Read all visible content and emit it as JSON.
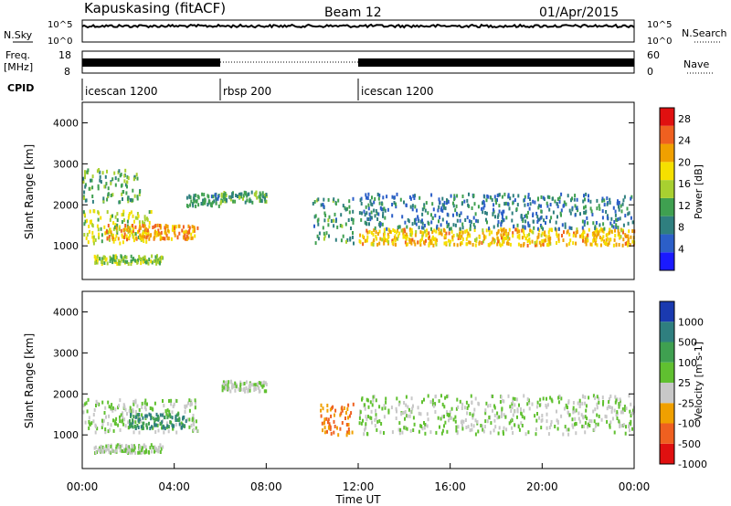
{
  "header": {
    "station": "Kapuskasing (fitACF)",
    "beam": "Beam 12",
    "date": "01/Apr/2015"
  },
  "chart_data": [
    {
      "type": "line",
      "panel": "noise",
      "left_label": "N.Sky",
      "right_label": "N.Search",
      "y_ticks_left": [
        "10^5",
        "10^0"
      ],
      "y_ticks_right": [
        "10^5",
        "10^0"
      ],
      "note": "N.Sky solid trace near the top of the panel throughout the day"
    },
    {
      "type": "line",
      "panel": "frequency",
      "left_label": [
        "Freq.",
        "[MHz]"
      ],
      "right_label": "Nave",
      "y_ticks_left": [
        "18",
        "8"
      ],
      "y_ticks_right": [
        "60",
        "0"
      ],
      "freq_segments": [
        {
          "start_h": 0,
          "end_h": 6.0,
          "style": "solid"
        },
        {
          "start_h": 6.0,
          "end_h": 12.0,
          "style": "dotted"
        },
        {
          "start_h": 12.0,
          "end_h": 24.0,
          "style": "solid"
        }
      ]
    },
    {
      "type": "table",
      "panel": "cpid",
      "label": "CPID",
      "segments": [
        {
          "start_h": 0,
          "label": "icescan 1200"
        },
        {
          "start_h": 6.0,
          "label": "rbsp 200"
        },
        {
          "start_h": 12.0,
          "label": "icescan 1200"
        }
      ]
    },
    {
      "type": "heatmap",
      "panel": "power",
      "ylabel": "Slant Range [km]",
      "ylim": [
        180,
        4500
      ],
      "y_ticks": [
        1000,
        2000,
        3000,
        4000
      ],
      "colorbar": {
        "label": "Power [dB]",
        "ticks": [
          4,
          8,
          12,
          16,
          20,
          24,
          28
        ],
        "range": [
          0,
          30
        ],
        "colors": [
          "#1a1aff",
          "#2c5fc8",
          "#2f7f7f",
          "#3fa050",
          "#a8d030",
          "#f5e000",
          "#f0a000",
          "#ef6020",
          "#e01010"
        ]
      },
      "regions": [
        {
          "t0": 0.0,
          "t1": 3.0,
          "r0": 1100,
          "r1": 1900,
          "level": 16
        },
        {
          "t0": 1.0,
          "t1": 5.0,
          "r0": 1200,
          "r1": 1550,
          "level": 22
        },
        {
          "t0": 0.0,
          "t1": 2.5,
          "r0": 2100,
          "r1": 2900,
          "level": 12
        },
        {
          "t0": 0.5,
          "t1": 3.5,
          "r0": 600,
          "r1": 800,
          "level": 14
        },
        {
          "t0": 4.5,
          "t1": 6.0,
          "r0": 2000,
          "r1": 2300,
          "level": 10
        },
        {
          "t0": 6.0,
          "t1": 8.0,
          "r0": 2100,
          "r1": 2350,
          "level": 12
        },
        {
          "t0": 10.0,
          "t1": 11.8,
          "r0": 1100,
          "r1": 2200,
          "level": 10
        },
        {
          "t0": 12.0,
          "t1": 24.0,
          "r0": 1050,
          "r1": 1450,
          "level": 20
        },
        {
          "t0": 12.0,
          "t1": 24.0,
          "r0": 1450,
          "r1": 2300,
          "level": 8
        }
      ]
    },
    {
      "type": "heatmap",
      "panel": "velocity",
      "ylabel": "Slant Range [km]",
      "xlabel": "Time UT",
      "xlim": [
        0,
        24
      ],
      "ylim": [
        180,
        4500
      ],
      "x_ticks": [
        "00:00",
        "04:00",
        "08:00",
        "12:00",
        "16:00",
        "20:00",
        "00:00"
      ],
      "y_ticks": [
        1000,
        2000,
        3000,
        4000
      ],
      "colorbar": {
        "label": "Velocity [m s-1]",
        "ticks": [
          1000,
          500,
          100,
          25,
          -25,
          -100,
          -500,
          -1000
        ],
        "colors": [
          "#1a3ab0",
          "#2f7f7f",
          "#3fa050",
          "#60c030",
          "#c8c8c8",
          "#f0a000",
          "#ef6020",
          "#e01010"
        ]
      },
      "regions": [
        {
          "t0": 0.0,
          "t1": 5.0,
          "r0": 1100,
          "r1": 1900,
          "level": 25
        },
        {
          "t0": 2.0,
          "t1": 4.5,
          "r0": 1200,
          "r1": 1550,
          "level": 500
        },
        {
          "t0": 0.5,
          "t1": 3.5,
          "r0": 600,
          "r1": 800,
          "level": 25
        },
        {
          "t0": 6.0,
          "t1": 8.0,
          "r0": 2100,
          "r1": 2350,
          "level": 25
        },
        {
          "t0": 10.3,
          "t1": 11.8,
          "r0": 1000,
          "r1": 1800,
          "level": -100
        },
        {
          "t0": 12.0,
          "t1": 24.0,
          "r0": 1050,
          "r1": 2000,
          "level": 25
        }
      ]
    }
  ]
}
